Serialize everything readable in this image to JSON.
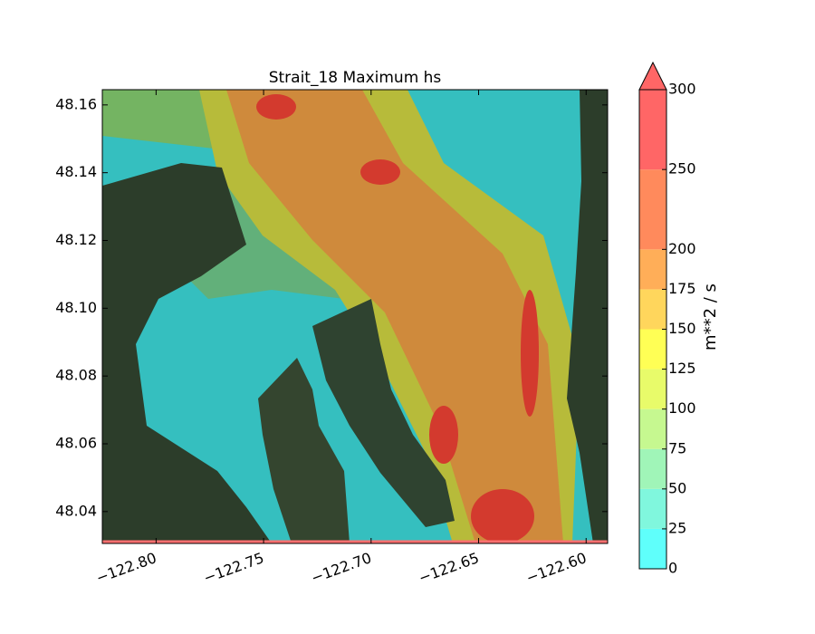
{
  "chart_data": {
    "type": "contourf",
    "title": "Strait_18 Maximum hs",
    "xlim": [
      -122.825,
      -122.59
    ],
    "ylim": [
      48.0306,
      48.1645
    ],
    "xticks": [
      {
        "value": -122.8,
        "label": "−122.80"
      },
      {
        "value": -122.75,
        "label": "−122.75"
      },
      {
        "value": -122.7,
        "label": "−122.70"
      },
      {
        "value": -122.65,
        "label": "−122.65"
      },
      {
        "value": -122.6,
        "label": "−122.60"
      }
    ],
    "yticks": [
      48.16,
      48.14,
      48.12,
      {
        "value": 48.1,
        "label": "48.10"
      },
      48.08,
      48.06,
      48.04
    ],
    "colorbar": {
      "label": "m**2 / s",
      "levels": [
        0,
        25,
        50,
        75,
        100,
        125,
        150,
        175,
        200,
        250,
        300
      ],
      "colors": [
        "#5ffffb",
        "#80f7dd",
        "#a0f5b8",
        "#c6f890",
        "#e8fb6a",
        "#ffff55",
        "#ffd65c",
        "#ffae58",
        "#ff8a5c",
        "#ff6666"
      ],
      "extend": "max",
      "extend_color": "#ff6666"
    }
  }
}
